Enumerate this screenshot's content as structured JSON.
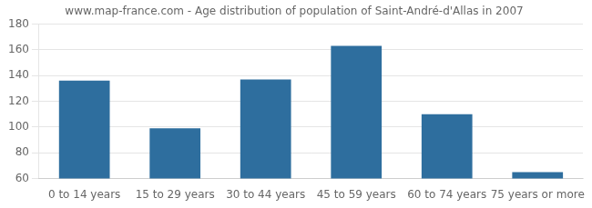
{
  "chart_data": {
    "type": "bar",
    "title": "www.map-france.com - Age distribution of population of Saint-André-d'Allas in 2007",
    "categories": [
      "0 to 14 years",
      "15 to 29 years",
      "30 to 44 years",
      "45 to 59 years",
      "60 to 74 years",
      "75 years or more"
    ],
    "values": [
      136,
      99,
      137,
      163,
      110,
      65
    ],
    "color": "#2e6e9e",
    "ylim": [
      60,
      180
    ],
    "yticks": [
      60,
      80,
      100,
      120,
      140,
      160,
      180
    ],
    "grid": true
  }
}
